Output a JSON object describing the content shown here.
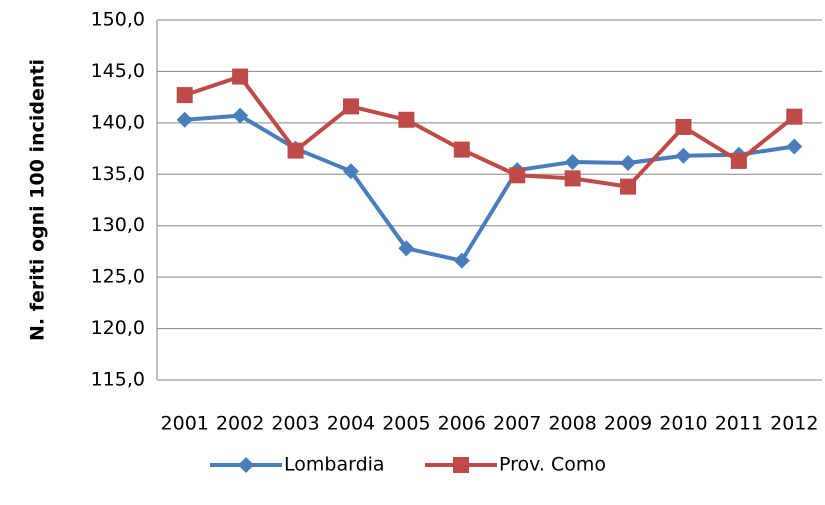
{
  "chart_data": {
    "type": "line",
    "ylabel": "N. feriti ogni 100 incidenti",
    "categories": [
      "2001",
      "2002",
      "2003",
      "2004",
      "2005",
      "2006",
      "2007",
      "2008",
      "2009",
      "2010",
      "2011",
      "2012"
    ],
    "series": [
      {
        "name": "Lombardia",
        "color": "#4a7ebb",
        "marker": "diamond",
        "values": [
          140.3,
          140.7,
          137.5,
          135.3,
          127.8,
          126.6,
          135.4,
          136.2,
          136.1,
          136.8,
          136.9,
          137.7
        ]
      },
      {
        "name": "Prov. Como",
        "color": "#be4b48",
        "marker": "square",
        "values": [
          142.7,
          144.5,
          137.3,
          141.6,
          140.3,
          137.4,
          134.9,
          134.6,
          133.8,
          139.6,
          136.3,
          140.6
        ]
      }
    ],
    "ylim": [
      115,
      150
    ],
    "yticks": [
      {
        "value": 115,
        "label": "115,0"
      },
      {
        "value": 120,
        "label": "120,0"
      },
      {
        "value": 125,
        "label": "125,0"
      },
      {
        "value": 130,
        "label": "130,0"
      },
      {
        "value": 135,
        "label": "135,0"
      },
      {
        "value": 140,
        "label": "140,0"
      },
      {
        "value": 145,
        "label": "145,0"
      },
      {
        "value": 150,
        "label": "150,0"
      }
    ],
    "grid": true,
    "legend": "bottom"
  }
}
